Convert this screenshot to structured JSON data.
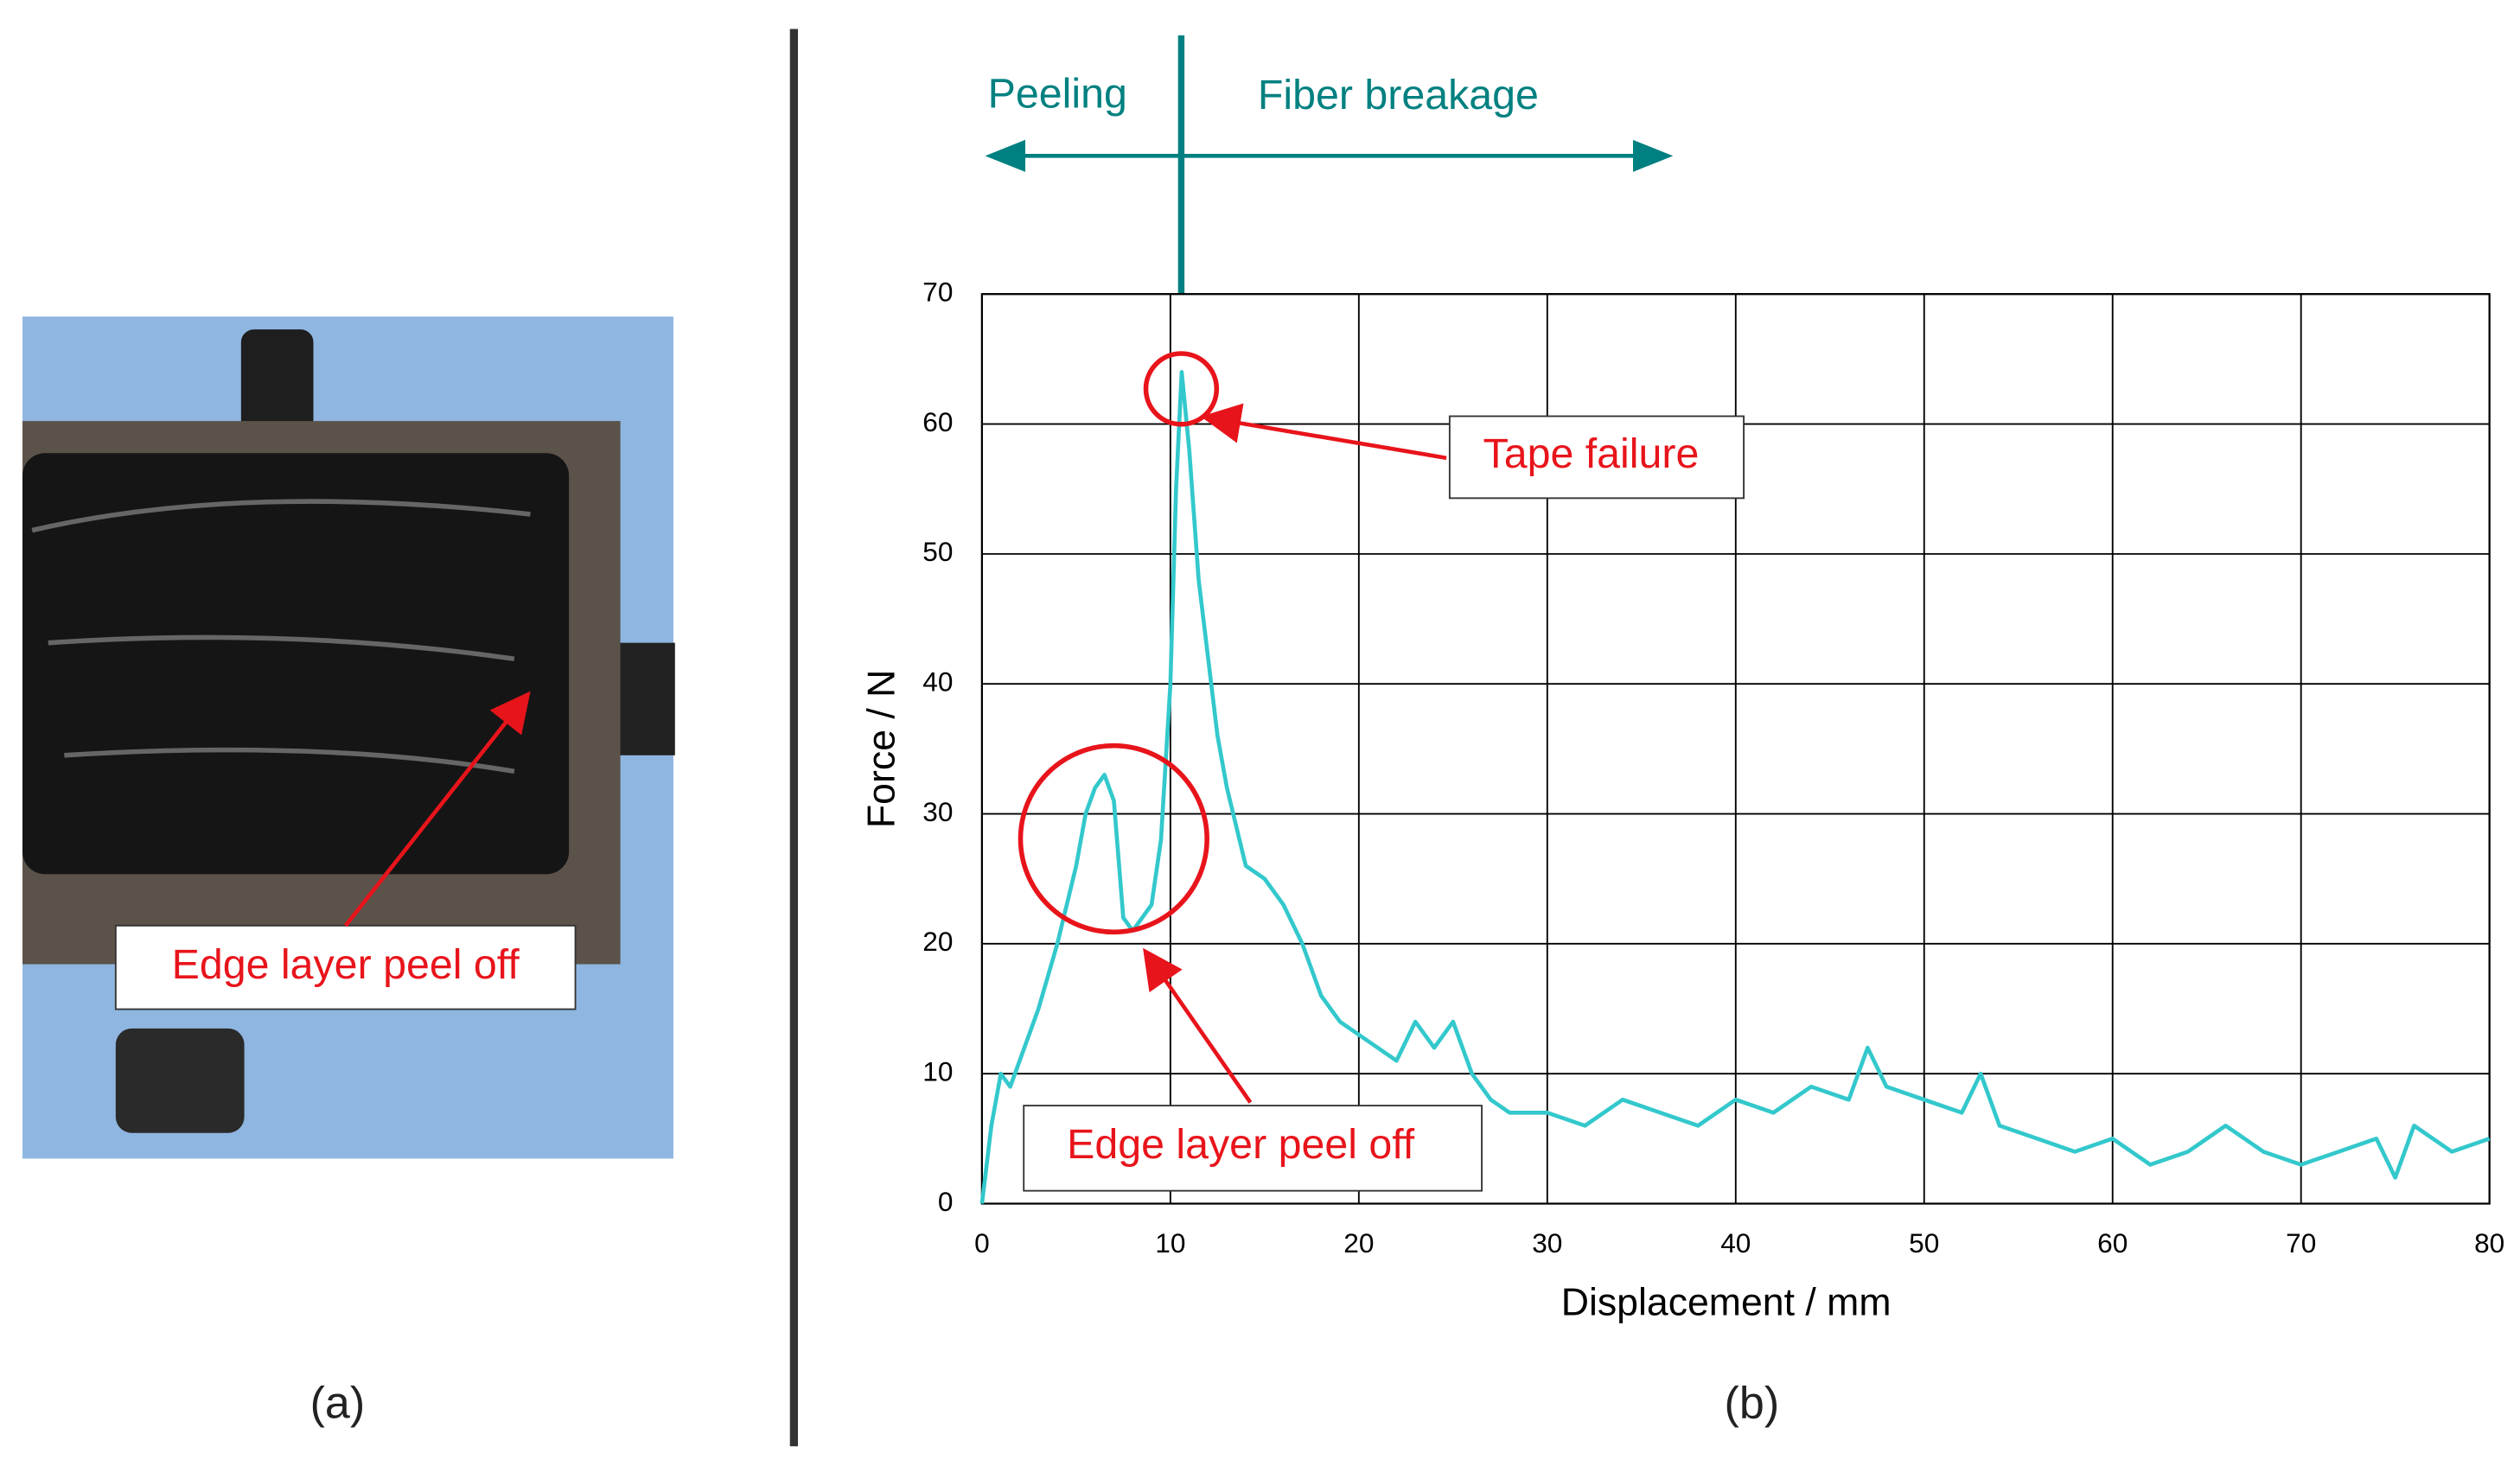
{
  "panel_a": {
    "label": "Edge layer peel off",
    "caption": "(a)"
  },
  "panel_b": {
    "caption": "(b)",
    "regions": [
      "Peeling",
      "Fiber breakage"
    ],
    "annotations": [
      "Tape failure",
      "Edge layer peel off"
    ]
  },
  "chart_data": {
    "type": "line",
    "x": [
      0,
      0.5,
      1,
      1.5,
      2,
      3,
      4,
      5,
      5.5,
      6,
      6.5,
      7,
      7.5,
      8,
      9,
      9.5,
      10,
      10.3,
      10.6,
      11,
      11.5,
      12,
      12.5,
      13,
      14,
      15,
      16,
      17,
      18,
      19,
      20,
      21,
      22,
      23,
      24,
      25,
      26,
      27,
      28,
      30,
      32,
      34,
      36,
      38,
      40,
      42,
      44,
      46,
      47,
      48,
      50,
      52,
      53,
      54,
      56,
      58,
      60,
      62,
      64,
      66,
      68,
      70,
      72,
      74,
      75,
      76,
      78,
      80
    ],
    "values": [
      0,
      6,
      10,
      9,
      11,
      15,
      20,
      26,
      30,
      32,
      33,
      31,
      22,
      21,
      23,
      28,
      40,
      55,
      64,
      58,
      48,
      42,
      36,
      32,
      26,
      25,
      23,
      20,
      16,
      14,
      13,
      12,
      11,
      14,
      12,
      14,
      10,
      8,
      7,
      7,
      6,
      8,
      7,
      6,
      8,
      7,
      9,
      8,
      12,
      9,
      8,
      7,
      10,
      6,
      5,
      4,
      5,
      3,
      4,
      6,
      4,
      3,
      4,
      5,
      2,
      6,
      4,
      5
    ],
    "color": "#33c8cc",
    "xlabel": "Displacement / mm",
    "ylabel": "Force / N",
    "xlim": [
      0,
      80
    ],
    "ylim": [
      0,
      70
    ],
    "xticks": [
      0,
      10,
      20,
      30,
      40,
      50,
      60,
      70,
      80
    ],
    "yticks": [
      0,
      10,
      20,
      30,
      40,
      50,
      60,
      70
    ],
    "grid": true
  }
}
